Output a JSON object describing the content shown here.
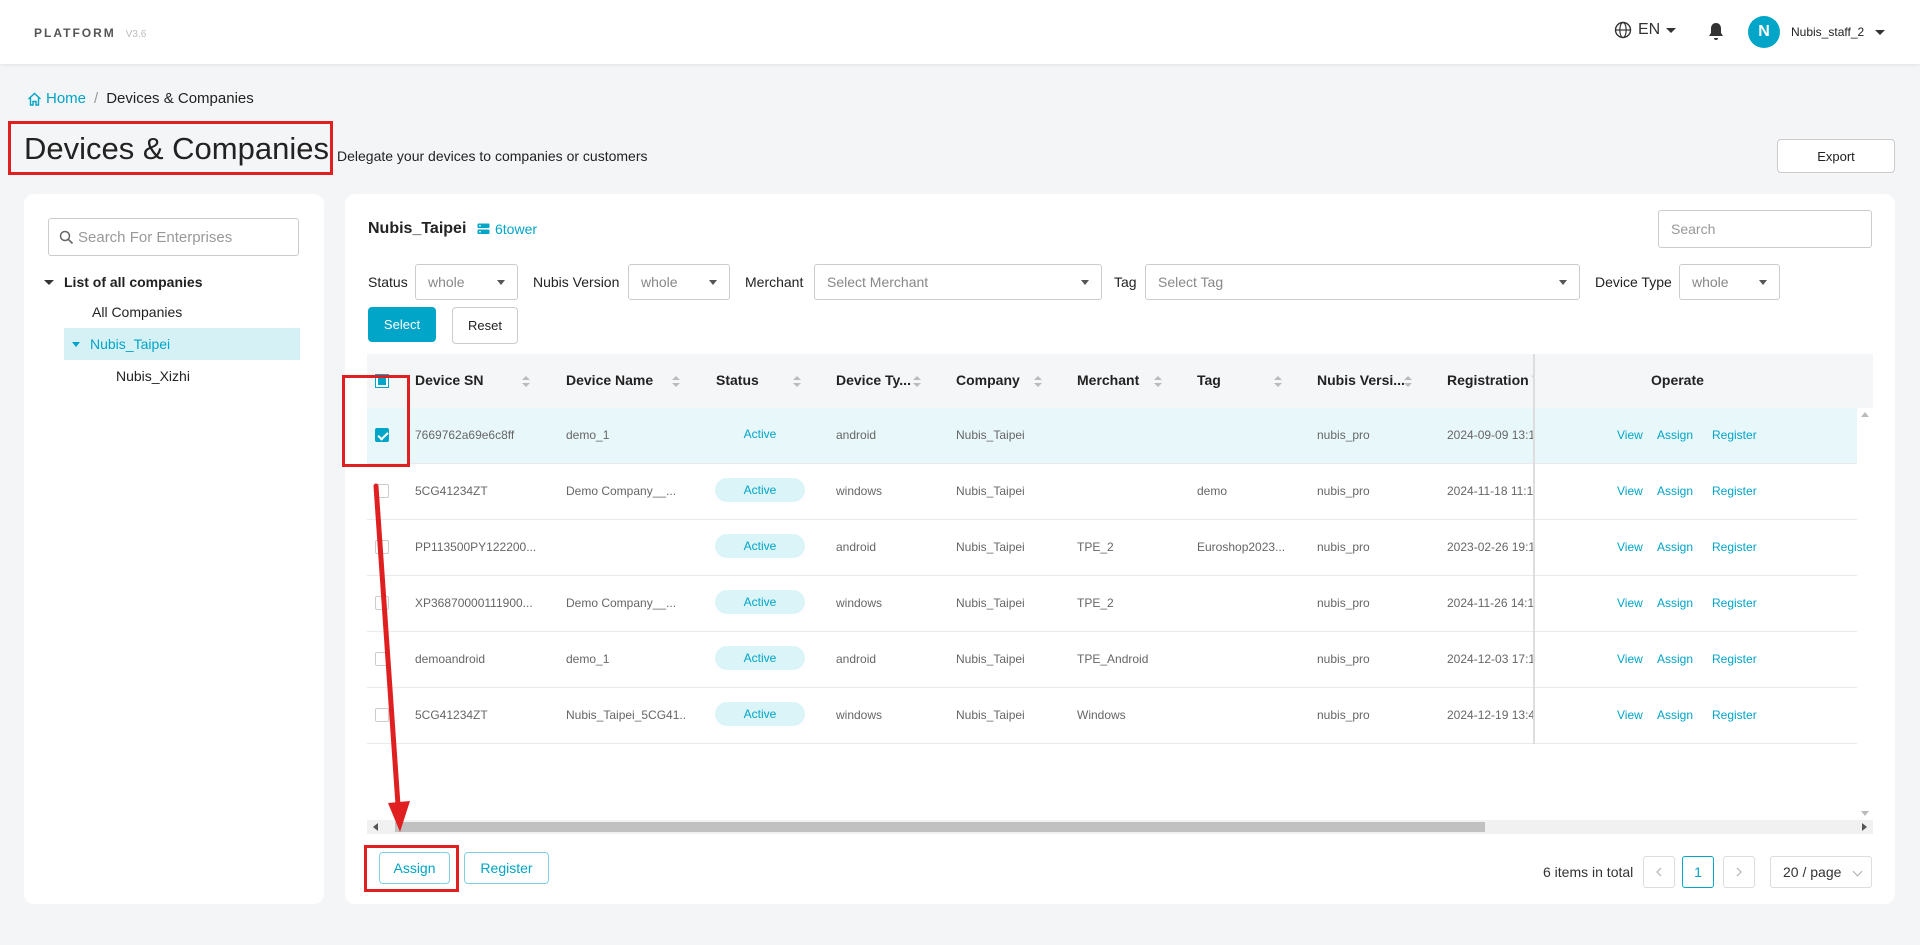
{
  "app": {
    "brand": "PLATFORM",
    "version": "V3.6"
  },
  "header": {
    "language": "EN",
    "user_initial": "N",
    "username": "Nubis_staff_2"
  },
  "breadcrumb": {
    "home": "Home",
    "separator": "/",
    "current": "Devices & Companies"
  },
  "page": {
    "title": "Devices & Companies",
    "subtitle": "Delegate your devices to companies or customers",
    "export_label": "Export"
  },
  "sidebar": {
    "search_placeholder": "Search For Enterprises",
    "tree_root": "List of all companies",
    "all_companies": "All Companies",
    "selected_company": "Nubis_Taipei",
    "child_company": "Nubis_Xizhi"
  },
  "main": {
    "company_name": "Nubis_Taipei",
    "company_tag": "6tower",
    "search_placeholder": "Search"
  },
  "filters": {
    "status_label": "Status",
    "status_value": "whole",
    "version_label": "Nubis Version",
    "version_value": "whole",
    "merchant_label": "Merchant",
    "merchant_placeholder": "Select Merchant",
    "tag_label": "Tag",
    "tag_placeholder": "Select Tag",
    "type_label": "Device Type",
    "type_value": "whole",
    "select_label": "Select",
    "reset_label": "Reset"
  },
  "table": {
    "columns": [
      "Device SN",
      "Device Name",
      "Status",
      "Device Ty...",
      "Company",
      "Merchant",
      "Tag",
      "Nubis Versi...",
      "Registration T",
      "Operate"
    ],
    "rows": [
      {
        "sn": "7669762a69e6c8ff",
        "name": "demo_1",
        "status": "Active",
        "type": "android",
        "company": "Nubis_Taipei",
        "merchant": "",
        "tag": "",
        "version": "nubis_pro",
        "registration": "2024-09-09 13:1",
        "checked": true
      },
      {
        "sn": "5CG41234ZT",
        "name": "Demo Company__...",
        "status": "Active",
        "type": "windows",
        "company": "Nubis_Taipei",
        "merchant": "",
        "tag": "demo",
        "version": "nubis_pro",
        "registration": "2024-11-18 11:1",
        "checked": false
      },
      {
        "sn": "PP113500PY122200...",
        "name": "",
        "status": "Active",
        "type": "android",
        "company": "Nubis_Taipei",
        "merchant": "TPE_2",
        "tag": "Euroshop2023...",
        "version": "nubis_pro",
        "registration": "2023-02-26 19:1",
        "checked": false
      },
      {
        "sn": "XP36870000111900...",
        "name": "Demo Company__...",
        "status": "Active",
        "type": "windows",
        "company": "Nubis_Taipei",
        "merchant": "TPE_2",
        "tag": "",
        "version": "nubis_pro",
        "registration": "2024-11-26 14:1",
        "checked": false
      },
      {
        "sn": "demoandroid",
        "name": "demo_1",
        "status": "Active",
        "type": "android",
        "company": "Nubis_Taipei",
        "merchant": "TPE_Android",
        "tag": "",
        "version": "nubis_pro",
        "registration": "2024-12-03 17:1",
        "checked": false
      },
      {
        "sn": "5CG41234ZT",
        "name": "Nubis_Taipei_5CG41...",
        "status": "Active",
        "type": "windows",
        "company": "Nubis_Taipei",
        "merchant": "Windows",
        "tag": "",
        "version": "nubis_pro",
        "registration": "2024-12-19 13:4",
        "checked": false
      }
    ],
    "operations": [
      "View",
      "Assign",
      "Register"
    ]
  },
  "footer": {
    "assign_label": "Assign",
    "register_label": "Register",
    "total_text": "6 items in total",
    "current_page": "1",
    "page_size": "20 / page"
  },
  "colors": {
    "accent": "#00a5c8",
    "annotation": "#e02020"
  }
}
